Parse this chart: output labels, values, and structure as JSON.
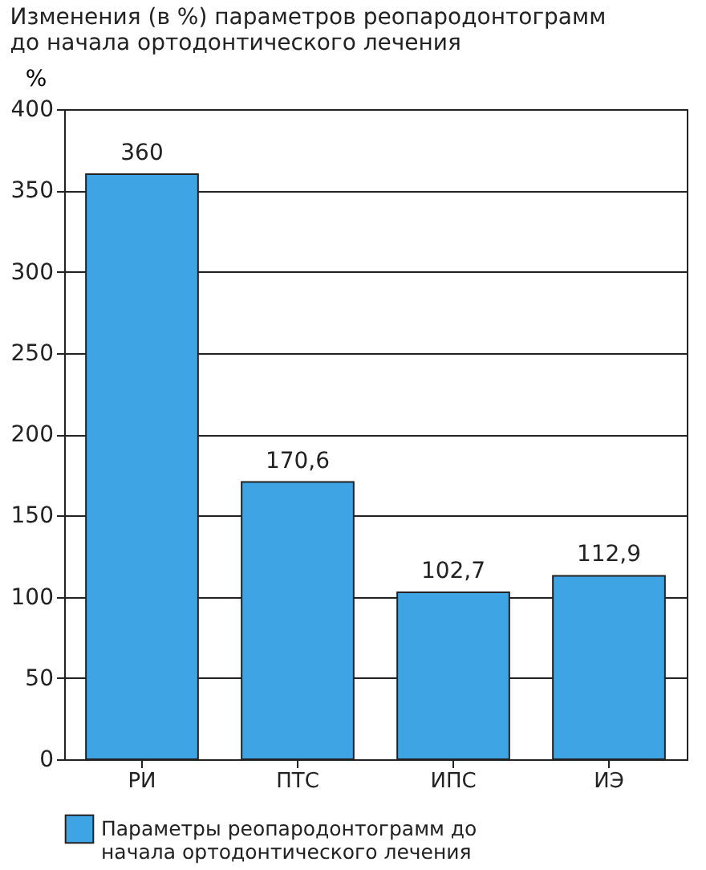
{
  "chart_data": {
    "type": "bar",
    "title": "Изменения (в %) параметров реопародонтограмм\nдо начала ортодонтического лечения",
    "ylabel": "%",
    "categories": [
      "РИ",
      "ПТС",
      "ИПС",
      "ИЭ"
    ],
    "series": [
      {
        "name": "Параметры реопародонтограмм до начала ортодонтического лечения",
        "color": "#3ea4e4",
        "values": [
          360,
          170.6,
          102.7,
          112.9
        ],
        "value_labels": [
          "360",
          "170,6",
          "102,7",
          "112,9"
        ]
      }
    ],
    "ylim": [
      0,
      400
    ],
    "yticks": [
      0,
      50,
      100,
      150,
      200,
      250,
      300,
      350,
      400
    ],
    "grid": "y",
    "legend": "bottom"
  }
}
